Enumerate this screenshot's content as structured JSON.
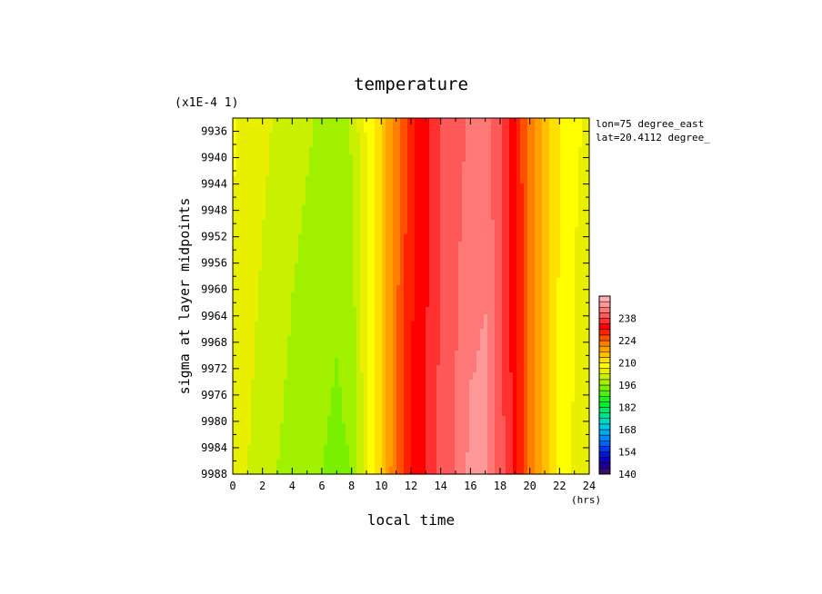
{
  "chart_data": {
    "type": "heatmap",
    "title": "temperature",
    "ylabel_scale": "(x1E-4 1)",
    "xlabel": "local time",
    "xunit": "(hrs)",
    "ylabel": "sigma at layer midpoints",
    "annotations": [
      "lon=75 degree_east",
      "lat=20.4112 degree_"
    ],
    "xlim": [
      0,
      24
    ],
    "ylim": [
      9988,
      9934
    ],
    "x_ticks": [
      0,
      2,
      4,
      6,
      8,
      10,
      12,
      14,
      16,
      18,
      20,
      22,
      24
    ],
    "y_ticks": [
      9936,
      9940,
      9944,
      9948,
      9952,
      9956,
      9960,
      9964,
      9968,
      9972,
      9976,
      9980,
      9984,
      9988
    ],
    "hours": [
      0,
      2,
      4,
      6,
      7,
      8,
      9,
      10,
      11,
      12,
      13,
      14,
      15,
      16,
      17,
      18,
      19,
      20,
      21,
      22,
      23,
      24
    ],
    "temperature_top": [
      207,
      204,
      201,
      199,
      198,
      200,
      207,
      214,
      222,
      230,
      233,
      238,
      240,
      242,
      244,
      238,
      232,
      222,
      215,
      210,
      207,
      206
    ],
    "temperature_bottom": [
      205,
      201,
      198,
      196,
      195,
      196,
      205,
      214,
      224,
      231,
      235,
      239,
      242,
      246,
      246,
      240,
      233,
      223,
      215,
      209,
      206,
      204
    ],
    "colorbar": {
      "min": 140,
      "max": 252,
      "step": 3.5,
      "tick_labels": [
        140,
        154,
        168,
        182,
        196,
        210,
        224,
        238
      ],
      "colors": [
        "#3a0a6e",
        "#200090",
        "#1000b8",
        "#0018d8",
        "#0038f0",
        "#0060f8",
        "#0088f8",
        "#00a8f0",
        "#00c8e0",
        "#00d8c0",
        "#00e090",
        "#00e860",
        "#00f030",
        "#20f020",
        "#50f010",
        "#78f000",
        "#a0f000",
        "#c8f000",
        "#e8f000",
        "#ffff00",
        "#ffe000",
        "#ffc000",
        "#ffa000",
        "#ff8000",
        "#ff5000",
        "#ff2000",
        "#ff0000",
        "#ff3030",
        "#ff5858",
        "#ff7878",
        "#ff9898",
        "#ffb0b0"
      ]
    }
  }
}
